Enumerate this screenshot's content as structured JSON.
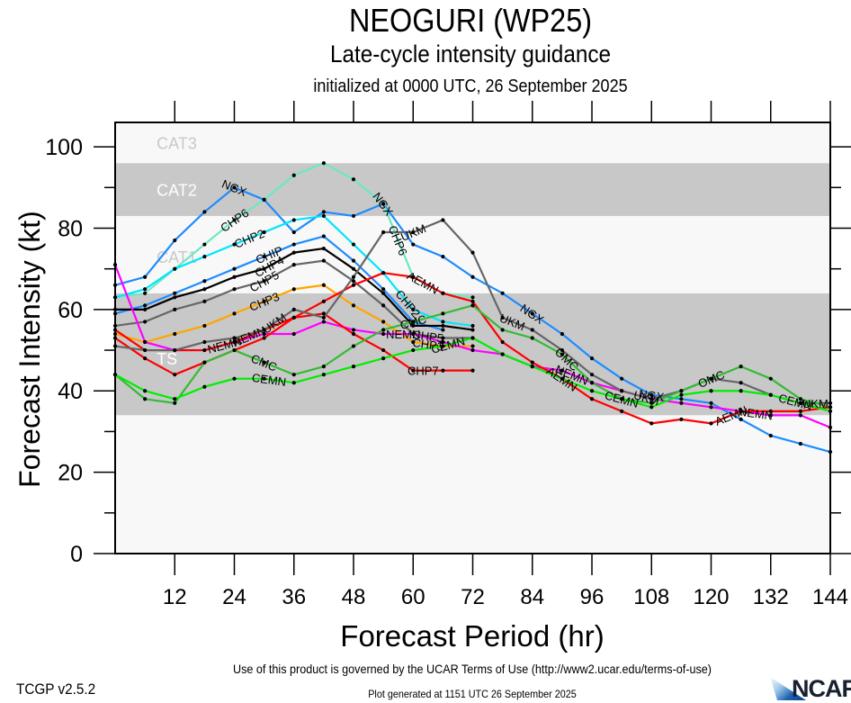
{
  "header": {
    "title": "NEOGURI (WP25)",
    "subtitle": "Late-cycle intensity guidance",
    "init_line": "initialized at 0000 UTC, 26 September 2025"
  },
  "footer": {
    "terms": "Use of this product is governed by the UCAR Terms of Use (http://www2.ucar.edu/terms-of-use)",
    "version": "TCGP v2.5.2",
    "generated": "Plot generated at 1151 UTC   26 September 2025",
    "logo_text": "NCAR"
  },
  "chart_data": {
    "type": "line",
    "title": "NEOGURI (WP25)",
    "subtitle": "Late-cycle intensity guidance",
    "xlabel": "Forecast Period (hr)",
    "ylabel": "Forecast Intensity (kt)",
    "xlim": [
      0,
      144
    ],
    "ylim": [
      0,
      106
    ],
    "xticks": [
      12,
      24,
      36,
      48,
      60,
      72,
      84,
      96,
      108,
      120,
      132,
      144
    ],
    "yticks": [
      0,
      20,
      40,
      60,
      80,
      100
    ],
    "y_minor_step": 10,
    "grid": false,
    "legend": "none (inline labels)",
    "bands": [
      {
        "name": "TS",
        "min": 34,
        "max": 64,
        "color": "#c8c8c8",
        "label_color": "#ffffff",
        "label_at": [
          8,
          48
        ]
      },
      {
        "name": "CAT1",
        "min": 64,
        "max": 83,
        "color": "#f8f8f8",
        "label_color": "#c8c8c8",
        "label_at": [
          8,
          73
        ]
      },
      {
        "name": "CAT2",
        "min": 83,
        "max": 96,
        "color": "#c8c8c8",
        "label_color": "#ffffff",
        "label_at": [
          8,
          89.5
        ]
      },
      {
        "name": "CAT3",
        "min": 96,
        "max": 106,
        "color": "#f8f8f8",
        "label_color": "#c8c8c8",
        "label_at": [
          8,
          101
        ]
      },
      {
        "name": "",
        "min": 0,
        "max": 34,
        "color": "#f8f8f8",
        "label_color": "#c8c8c8",
        "label_at": null
      }
    ],
    "series": [
      {
        "name": "NGX",
        "color": "#1e8cff",
        "x0": 0,
        "values": [
          66,
          68,
          77,
          84,
          90,
          87,
          79,
          84,
          83,
          86,
          76,
          73,
          68,
          64,
          59,
          54,
          48,
          43,
          39,
          38,
          37,
          33,
          29,
          27,
          25
        ],
        "labels_at": [
          24,
          54,
          84,
          108
        ]
      },
      {
        "name": "CHP6",
        "color": "#6be8c4",
        "x0": 0,
        "values": [
          63,
          64,
          70,
          76,
          82,
          87,
          93,
          96,
          92,
          86,
          68,
          64,
          63
        ],
        "labels_at": [
          24,
          57
        ]
      },
      {
        "name": "CHP2",
        "color": "#00e6ff",
        "x0": 0,
        "values": [
          63,
          65,
          70,
          73,
          76,
          79,
          82,
          83,
          76,
          69,
          60,
          57,
          56
        ],
        "labels_at": [
          27,
          59
        ]
      },
      {
        "name": "CHIP",
        "color": "#1e8cff",
        "x0": 0,
        "values": [
          59,
          61,
          64,
          67,
          70,
          73,
          76,
          78,
          72,
          65,
          57,
          55
        ],
        "labels_at": [
          31
        ]
      },
      {
        "name": "CHP4",
        "color": "#000000",
        "x0": 0,
        "values": [
          60,
          60,
          63,
          65,
          68,
          70,
          74,
          75,
          70,
          64,
          56,
          56,
          55
        ],
        "labels_at": [
          31
        ]
      },
      {
        "name": "CHP5",
        "color": "#666666",
        "x0": 0,
        "values": [
          56,
          57,
          60,
          62,
          65,
          67,
          71,
          72,
          67,
          61,
          54,
          53,
          53
        ],
        "labels_at": [
          30,
          63
        ]
      },
      {
        "name": "CHP3",
        "color": "#ffa500",
        "x0": 0,
        "values": [
          54,
          52,
          54,
          56,
          59,
          62,
          65,
          66,
          61,
          57,
          52,
          51,
          51
        ],
        "labels_at": [
          30,
          63
        ]
      },
      {
        "name": "NEMN",
        "color": "#ff00ff",
        "x0": 0,
        "values": [
          71,
          52,
          50,
          50,
          52,
          54,
          54,
          57,
          55,
          54,
          54,
          52,
          50,
          49,
          46,
          45,
          42,
          40,
          38,
          37,
          36,
          35,
          34,
          34,
          31
        ],
        "labels_at": [
          22,
          58,
          92,
          129
        ]
      },
      {
        "name": "AEMN",
        "color": "#ff0000",
        "x0": 0,
        "values": [
          55,
          50,
          50,
          50,
          52,
          55,
          58,
          62,
          66,
          69,
          68,
          64,
          62,
          52,
          47,
          43,
          38,
          35,
          32,
          33,
          32,
          35,
          35,
          35,
          36
        ],
        "labels_at": [
          27,
          62,
          90,
          124
        ]
      },
      {
        "name": "CHP7",
        "color": "#ff0000",
        "x0": 0,
        "values": [
          53,
          48,
          44,
          47,
          50,
          53,
          58,
          59,
          54,
          50,
          45,
          45,
          45
        ],
        "labels_at": [
          62
        ]
      },
      {
        "name": "UKM",
        "color": "#666666",
        "x0": 0,
        "values": [
          51,
          50,
          50,
          52,
          53,
          55,
          60,
          58,
          68,
          79,
          79,
          82,
          74,
          58,
          55,
          50,
          44,
          40,
          38,
          40,
          43,
          42,
          39,
          37,
          37
        ],
        "labels_at": [
          32,
          60,
          80,
          107,
          141
        ]
      },
      {
        "name": "CMC",
        "color": "#33bb33",
        "x0": 0,
        "values": [
          44,
          38,
          37,
          47,
          50,
          47,
          44,
          46,
          51,
          55,
          57,
          59,
          61
        ],
        "labels_at": [
          30,
          60
        ]
      },
      {
        "name": "OMC",
        "color": "#33bb33",
        "x0": 72,
        "values": [
          61,
          55,
          53,
          49,
          42,
          38,
          37,
          40,
          43,
          46,
          43,
          38,
          36
        ],
        "labels_at": [
          91,
          120
        ]
      },
      {
        "name": "CEMN",
        "color": "#00ee00",
        "x0": 0,
        "values": [
          44,
          40,
          38,
          41,
          43,
          43,
          42,
          44,
          46,
          48,
          50,
          51,
          53,
          49,
          46,
          43,
          40,
          38,
          36,
          39,
          40,
          40,
          39,
          37,
          35
        ],
        "labels_at": [
          31,
          67,
          102,
          137
        ]
      }
    ]
  }
}
